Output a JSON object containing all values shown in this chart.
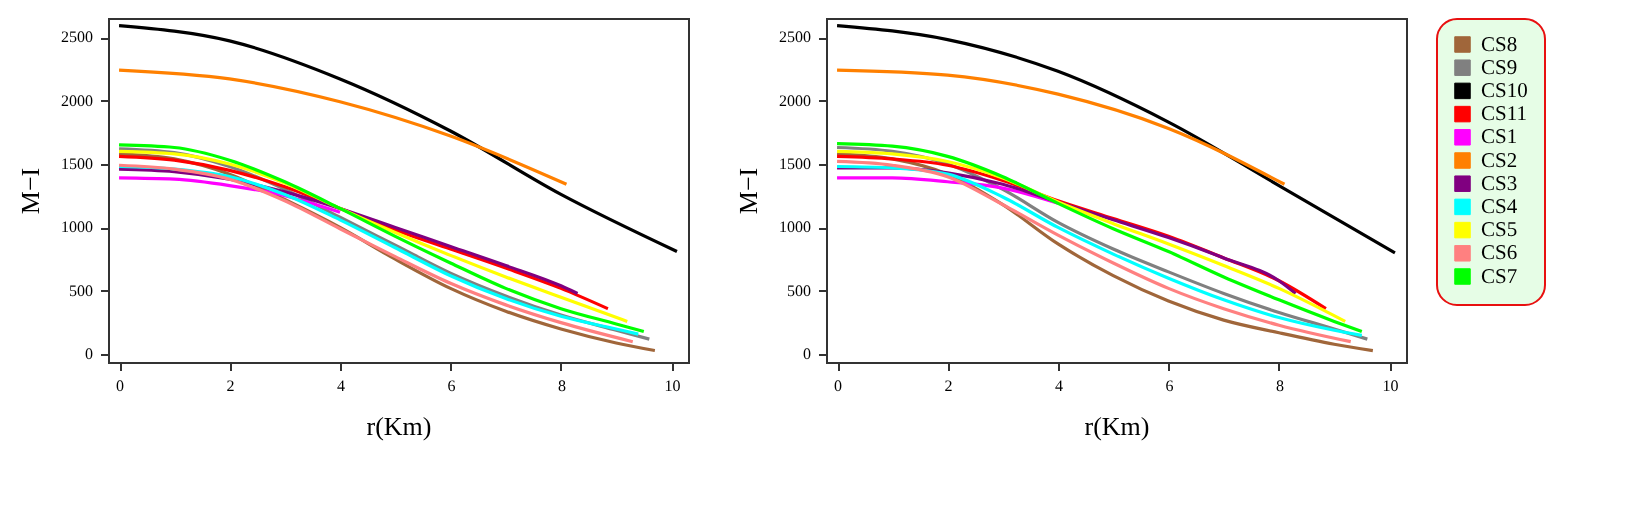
{
  "chart_data": [
    {
      "type": "line",
      "xlabel": "r(Km)",
      "ylabel": "M−I",
      "xlim": [
        -0.2,
        10.3
      ],
      "ylim": [
        -60,
        2650
      ],
      "xticks": [
        0,
        2,
        4,
        6,
        8,
        10
      ],
      "yticks": [
        0,
        500,
        1000,
        1500,
        2000,
        2500
      ],
      "legend": "right",
      "series": [
        {
          "name": "CS8",
          "color": "#a0663a",
          "x": [
            0,
            1,
            2,
            3,
            4,
            5,
            6,
            7,
            8,
            9,
            9.7
          ],
          "values": [
            1580,
            1540,
            1420,
            1220,
            1000,
            750,
            520,
            340,
            200,
            90,
            30
          ]
        },
        {
          "name": "CS9",
          "color": "#808080",
          "x": [
            0,
            1,
            2,
            3,
            4,
            5,
            6,
            7,
            8,
            9,
            9.6
          ],
          "values": [
            1620,
            1590,
            1480,
            1300,
            1080,
            860,
            640,
            460,
            310,
            190,
            120
          ]
        },
        {
          "name": "CS10",
          "color": "#000000",
          "x": [
            0,
            2,
            4,
            6,
            8,
            10.1
          ],
          "values": [
            2590,
            2470,
            2170,
            1760,
            1260,
            810
          ]
        },
        {
          "name": "CS11",
          "color": "#ff0000",
          "x": [
            0,
            1,
            2,
            3,
            4,
            5,
            6,
            7,
            8,
            8.85
          ],
          "values": [
            1560,
            1530,
            1450,
            1320,
            1150,
            980,
            830,
            680,
            520,
            360
          ]
        },
        {
          "name": "CS1",
          "color": "#ff00ff",
          "x": [
            0,
            1,
            2,
            3,
            4
          ],
          "values": [
            1390,
            1380,
            1330,
            1250,
            1120
          ]
        },
        {
          "name": "CS2",
          "color": "#ff8000",
          "x": [
            0,
            2,
            4,
            6,
            8.1
          ],
          "values": [
            2240,
            2170,
            1990,
            1720,
            1340
          ]
        },
        {
          "name": "CS3",
          "color": "#800080",
          "x": [
            0,
            1,
            2,
            3,
            4,
            5,
            6,
            7,
            8,
            8.3
          ],
          "values": [
            1460,
            1440,
            1380,
            1280,
            1150,
            1000,
            850,
            700,
            540,
            480
          ]
        },
        {
          "name": "CS4",
          "color": "#00ffff",
          "x": [
            0,
            1,
            2,
            3,
            4,
            5,
            6,
            7,
            8,
            9,
            9.4
          ],
          "values": [
            1480,
            1460,
            1400,
            1260,
            1060,
            840,
            620,
            440,
            300,
            200,
            160
          ]
        },
        {
          "name": "CS5",
          "color": "#ffff00",
          "x": [
            0,
            1,
            2,
            3,
            4,
            5,
            6,
            7,
            8,
            9.2
          ],
          "values": [
            1600,
            1580,
            1500,
            1350,
            1150,
            960,
            780,
            610,
            450,
            260
          ]
        },
        {
          "name": "CS6",
          "color": "#ff8080",
          "x": [
            0,
            1,
            2,
            3,
            4,
            5,
            6,
            7,
            8,
            9.3
          ],
          "values": [
            1490,
            1460,
            1380,
            1210,
            990,
            770,
            560,
            390,
            250,
            100
          ]
        },
        {
          "name": "CS7",
          "color": "#00ff00",
          "x": [
            0,
            1,
            2,
            3,
            4,
            5,
            6,
            7,
            8,
            9,
            9.5
          ],
          "values": [
            1650,
            1630,
            1530,
            1360,
            1150,
            930,
            720,
            520,
            360,
            240,
            180
          ]
        }
      ]
    },
    {
      "type": "line",
      "xlabel": "r(Km)",
      "ylabel": "M−I",
      "xlim": [
        -0.2,
        10.3
      ],
      "ylim": [
        -60,
        2650
      ],
      "xticks": [
        0,
        2,
        4,
        6,
        8,
        10
      ],
      "yticks": [
        0,
        500,
        1000,
        1500,
        2000,
        2500
      ],
      "legend": "right",
      "series": [
        {
          "name": "CS8",
          "color": "#a0663a",
          "x": [
            0,
            1,
            2,
            3,
            4,
            5,
            6,
            7,
            8,
            9,
            9.7
          ],
          "values": [
            1580,
            1540,
            1420,
            1180,
            870,
            620,
            420,
            270,
            170,
            80,
            30
          ]
        },
        {
          "name": "CS9",
          "color": "#808080",
          "x": [
            0,
            1,
            2,
            3,
            4,
            5,
            6,
            7,
            8,
            9,
            9.6
          ],
          "values": [
            1630,
            1600,
            1500,
            1300,
            1040,
            830,
            650,
            480,
            330,
            200,
            120
          ]
        },
        {
          "name": "CS10",
          "color": "#000000",
          "x": [
            0,
            2,
            4,
            6,
            8,
            10.1
          ],
          "values": [
            2590,
            2480,
            2230,
            1830,
            1330,
            800
          ]
        },
        {
          "name": "CS11",
          "color": "#ff0000",
          "x": [
            0,
            1,
            2,
            3,
            4,
            5,
            6,
            7,
            8,
            8.85
          ],
          "values": [
            1560,
            1540,
            1490,
            1370,
            1210,
            1070,
            930,
            760,
            580,
            360
          ]
        },
        {
          "name": "CS1",
          "color": "#ff00ff",
          "x": [
            0,
            1,
            2,
            3,
            4
          ],
          "values": [
            1390,
            1390,
            1360,
            1310,
            1190
          ]
        },
        {
          "name": "CS2",
          "color": "#ff8000",
          "x": [
            0,
            2,
            4,
            6,
            8.1
          ],
          "values": [
            2240,
            2200,
            2050,
            1780,
            1340
          ]
        },
        {
          "name": "CS3",
          "color": "#800080",
          "x": [
            0,
            1,
            2,
            3,
            4,
            5,
            6,
            7,
            8,
            8.3
          ],
          "values": [
            1470,
            1470,
            1430,
            1340,
            1200,
            1060,
            920,
            760,
            580,
            480
          ]
        },
        {
          "name": "CS4",
          "color": "#00ffff",
          "x": [
            0,
            1,
            2,
            3,
            4,
            5,
            6,
            7,
            8,
            9,
            9.5
          ],
          "values": [
            1480,
            1470,
            1420,
            1240,
            1000,
            790,
            600,
            430,
            290,
            190,
            150
          ]
        },
        {
          "name": "CS5",
          "color": "#ffff00",
          "x": [
            0,
            1,
            2,
            3,
            4,
            5,
            6,
            7,
            8,
            9.2
          ],
          "values": [
            1600,
            1580,
            1520,
            1390,
            1200,
            1030,
            870,
            700,
            520,
            260
          ]
        },
        {
          "name": "CS6",
          "color": "#ff8080",
          "x": [
            0,
            1,
            2,
            3,
            4,
            5,
            6,
            7,
            8,
            9.3
          ],
          "values": [
            1520,
            1490,
            1400,
            1180,
            940,
            720,
            520,
            360,
            230,
            100
          ]
        },
        {
          "name": "CS7",
          "color": "#00ff00",
          "x": [
            0,
            1,
            2,
            3,
            4,
            5,
            6,
            7,
            8,
            9,
            9.5
          ],
          "values": [
            1660,
            1640,
            1560,
            1400,
            1190,
            990,
            810,
            610,
            430,
            260,
            180
          ]
        }
      ]
    }
  ]
}
